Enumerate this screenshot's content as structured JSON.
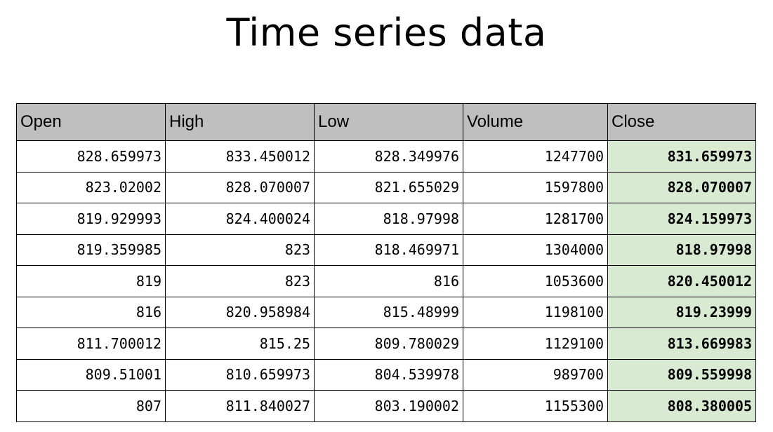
{
  "title": "Time series data",
  "colors": {
    "header_bg": "#bfbfbf",
    "close_bg": "#d9ead3"
  },
  "table": {
    "columns": [
      "Open",
      "High",
      "Low",
      "Volume",
      "Close"
    ],
    "rows": [
      [
        "828.659973",
        "833.450012",
        "828.349976",
        "1247700",
        "831.659973"
      ],
      [
        "823.02002",
        "828.070007",
        "821.655029",
        "1597800",
        "828.070007"
      ],
      [
        "819.929993",
        "824.400024",
        "818.97998",
        "1281700",
        "824.159973"
      ],
      [
        "819.359985",
        "823",
        "818.469971",
        "1304000",
        "818.97998"
      ],
      [
        "819",
        "823",
        "816",
        "1053600",
        "820.450012"
      ],
      [
        "816",
        "820.958984",
        "815.48999",
        "1198100",
        "819.23999"
      ],
      [
        "811.700012",
        "815.25",
        "809.780029",
        "1129100",
        "813.669983"
      ],
      [
        "809.51001",
        "810.659973",
        "804.539978",
        "989700",
        "809.559998"
      ],
      [
        "807",
        "811.840027",
        "803.190002",
        "1155300",
        "808.380005"
      ]
    ]
  }
}
